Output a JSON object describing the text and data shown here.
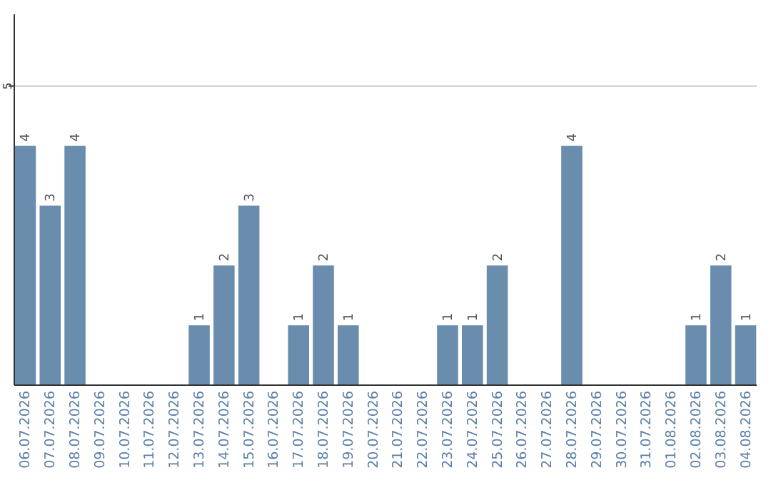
{
  "chart_data": {
    "type": "bar",
    "categories": [
      "06.07.2026",
      "07.07.2026",
      "08.07.2026",
      "09.07.2026",
      "10.07.2026",
      "11.07.2026",
      "12.07.2026",
      "13.07.2026",
      "14.07.2026",
      "15.07.2026",
      "16.07.2026",
      "17.07.2026",
      "18.07.2026",
      "19.07.2026",
      "20.07.2026",
      "21.07.2026",
      "22.07.2026",
      "23.07.2026",
      "24.07.2026",
      "25.07.2026",
      "26.07.2026",
      "27.07.2026",
      "28.07.2026",
      "29.07.2026",
      "30.07.2026",
      "31.07.2026",
      "01.08.2026",
      "02.08.2026",
      "03.08.2026",
      "04.08.2026"
    ],
    "values": [
      4,
      3,
      4,
      0,
      0,
      0,
      0,
      1,
      2,
      3,
      0,
      1,
      2,
      1,
      0,
      0,
      0,
      1,
      1,
      2,
      0,
      0,
      4,
      0,
      0,
      0,
      0,
      1,
      2,
      1
    ],
    "value_labels": [
      "4",
      "3",
      "4",
      null,
      null,
      null,
      null,
      "1",
      "2",
      "3",
      null,
      "1",
      "2",
      "1",
      null,
      null,
      null,
      "1",
      "1",
      "2",
      null,
      null,
      "4",
      null,
      null,
      null,
      null,
      "1",
      "2",
      "1"
    ],
    "color": "#6a8cad",
    "ylim": [
      0,
      6.2
    ],
    "yticks": [
      5
    ],
    "grid": "y"
  }
}
